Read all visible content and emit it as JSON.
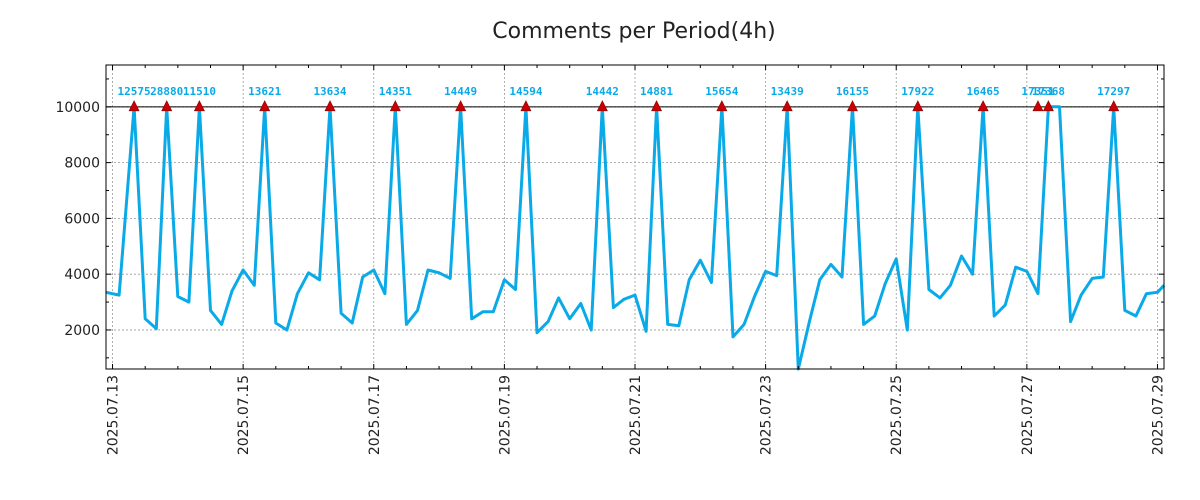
{
  "chart_data": {
    "type": "line",
    "title": "Comments per Period(4h)",
    "xlabel": "",
    "ylabel": "",
    "x_unit": "days since 2025.07.13 00:00 (4-hour steps)",
    "xlim": [
      -0.1,
      16.1
    ],
    "ylim": [
      600,
      11500
    ],
    "clip_value": 10000,
    "y_ticks": [
      2000,
      4000,
      6000,
      8000,
      10000
    ],
    "y_tick_labels": [
      "2000",
      "4000",
      "6000",
      "8000",
      "10000"
    ],
    "x_ticks": [
      0,
      2,
      4,
      6,
      8,
      10,
      12,
      14,
      16
    ],
    "x_tick_labels": [
      "2025.07.13",
      "2025.07.15",
      "2025.07.17",
      "2025.07.19",
      "2025.07.21",
      "2025.07.23",
      "2025.07.25",
      "2025.07.27",
      "2025.07.29"
    ],
    "x_minor_step": 0.5,
    "grid": true,
    "series": [
      {
        "name": "comments",
        "color": "#0aaae8",
        "x": [
          -0.1,
          0.1,
          0.33,
          0.5,
          0.67,
          0.83,
          1.0,
          1.17,
          1.33,
          1.5,
          1.67,
          1.83,
          2.0,
          2.17,
          2.33,
          2.5,
          2.67,
          2.83,
          3.0,
          3.17,
          3.33,
          3.5,
          3.67,
          3.83,
          4.0,
          4.17,
          4.33,
          4.5,
          4.67,
          4.83,
          5.0,
          5.17,
          5.33,
          5.5,
          5.67,
          5.83,
          6.0,
          6.17,
          6.33,
          6.5,
          6.67,
          6.83,
          7.0,
          7.17,
          7.33,
          7.5,
          7.67,
          7.83,
          8.0,
          8.17,
          8.33,
          8.5,
          8.67,
          8.83,
          9.0,
          9.17,
          9.33,
          9.5,
          9.67,
          9.83,
          10.0,
          10.17,
          10.33,
          10.5,
          10.67,
          10.83,
          11.0,
          11.17,
          11.33,
          11.5,
          11.67,
          11.83,
          12.0,
          12.17,
          12.33,
          12.5,
          12.67,
          12.83,
          13.0,
          13.17,
          13.33,
          13.5,
          13.67,
          13.83,
          14.0,
          14.17,
          14.33,
          14.5,
          14.67,
          14.83,
          15.0,
          15.17,
          15.33,
          15.5,
          15.67,
          15.83,
          16.0,
          16.1
        ],
        "values": [
          3350,
          3250,
          10000,
          2400,
          2050,
          10000,
          3200,
          3000,
          10000,
          2700,
          2200,
          3400,
          4150,
          3600,
          10000,
          2250,
          2000,
          3300,
          4050,
          3800,
          10000,
          2600,
          2250,
          3900,
          4150,
          3300,
          10000,
          2200,
          2700,
          4150,
          4050,
          3850,
          10000,
          2400,
          2650,
          2650,
          3800,
          3450,
          10000,
          1900,
          2300,
          3150,
          2400,
          2950,
          2000,
          10000,
          2800,
          3100,
          3250,
          1950,
          10000,
          2200,
          2150,
          3800,
          4500,
          3700,
          10000,
          1750,
          2200,
          3200,
          4100,
          3950,
          10000,
          600,
          2300,
          3800,
          4350,
          3900,
          10000,
          2200,
          2500,
          3650,
          4550,
          2000,
          10000,
          3450,
          3150,
          3600,
          4650,
          4000,
          10000,
          2500,
          2900,
          4250,
          4100,
          3300,
          10000,
          10000,
          2300,
          3250,
          3850,
          3900,
          10000,
          2700,
          2500,
          3300,
          3350,
          3600
        ]
      }
    ],
    "peaks": [
      {
        "x": 0.33,
        "label": "12575"
      },
      {
        "x": 0.83,
        "label": "28880"
      },
      {
        "x": 1.33,
        "label": "11510"
      },
      {
        "x": 2.33,
        "label": "13621"
      },
      {
        "x": 3.33,
        "label": "13634"
      },
      {
        "x": 4.33,
        "label": "14351"
      },
      {
        "x": 5.33,
        "label": "14449"
      },
      {
        "x": 6.33,
        "label": "14594"
      },
      {
        "x": 7.5,
        "label": "14442"
      },
      {
        "x": 8.33,
        "label": "14881"
      },
      {
        "x": 9.33,
        "label": "15654"
      },
      {
        "x": 10.33,
        "label": "13439"
      },
      {
        "x": 11.33,
        "label": "16155"
      },
      {
        "x": 12.33,
        "label": "17922"
      },
      {
        "x": 13.33,
        "label": "16465"
      },
      {
        "x": 14.17,
        "label": "17351"
      },
      {
        "x": 14.33,
        "label": "17368"
      },
      {
        "x": 15.33,
        "label": "17297"
      }
    ],
    "marker_color": "#cc0000",
    "peak_label_color": "#0aaae8"
  }
}
